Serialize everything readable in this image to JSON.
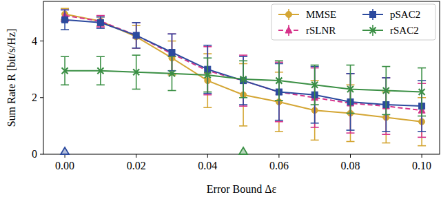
{
  "chart_data": {
    "type": "line",
    "x_label": "Error Bound Δε",
    "y_label": "Sum Rate R [bit/s/Hz]",
    "x": [
      0.0,
      0.01,
      0.02,
      0.03,
      0.04,
      0.05,
      0.06,
      0.07,
      0.08,
      0.09,
      0.1
    ],
    "xlim": [
      -0.006,
      0.105
    ],
    "ylim": [
      0,
      5.4
    ],
    "xticks": [
      {
        "value": 0.0,
        "label": "0.00"
      },
      {
        "value": 0.02,
        "label": "0.02"
      },
      {
        "value": 0.04,
        "label": "0.04"
      },
      {
        "value": 0.06,
        "label": "0.06"
      },
      {
        "value": 0.08,
        "label": "0.08"
      },
      {
        "value": 0.1,
        "label": "0.10"
      }
    ],
    "yticks": [
      0,
      2,
      4
    ],
    "grid": false,
    "legend": "upper right",
    "series": [
      {
        "name": "MMSE",
        "color": "#d4a634",
        "marker": "circle",
        "line_style": "solid",
        "values": [
          4.95,
          4.7,
          4.15,
          3.4,
          2.6,
          2.1,
          1.85,
          1.55,
          1.45,
          1.3,
          1.15
        ],
        "errors": [
          0.2,
          0.15,
          0.4,
          0.6,
          0.95,
          1.1,
          1.05,
          1.05,
          1.0,
          0.9,
          0.85
        ]
      },
      {
        "name": "rSLNR",
        "color": "#d6338a",
        "marker": "triangle",
        "line_style": "dashed",
        "values": [
          4.9,
          4.7,
          4.2,
          3.55,
          2.95,
          2.6,
          2.2,
          2.0,
          1.8,
          1.7,
          1.55
        ],
        "errors": [
          0.2,
          0.2,
          0.45,
          0.7,
          0.85,
          0.9,
          1.05,
          1.05,
          1.05,
          1.0,
          0.95
        ]
      },
      {
        "name": "pSAC2",
        "color": "#2c4a9e",
        "marker": "square",
        "line_style": "solid",
        "values": [
          4.75,
          4.65,
          4.2,
          3.6,
          3.0,
          2.6,
          2.2,
          2.1,
          1.85,
          1.75,
          1.7
        ],
        "errors": [
          0.35,
          0.2,
          0.45,
          0.65,
          0.85,
          0.85,
          1.0,
          1.0,
          1.0,
          0.95,
          0.9
        ]
      },
      {
        "name": "rSAC2",
        "color": "#3a8f44",
        "marker": "x",
        "line_style": "solid",
        "values": [
          2.95,
          2.95,
          2.9,
          2.85,
          2.8,
          2.65,
          2.6,
          2.45,
          2.3,
          2.25,
          2.2
        ],
        "errors": [
          0.5,
          0.5,
          0.6,
          0.6,
          0.6,
          0.65,
          0.7,
          0.7,
          0.85,
          0.85,
          0.85
        ]
      }
    ],
    "axis_markers": [
      {
        "x": 0.0,
        "color": "#2c4a9e"
      },
      {
        "x": 0.05,
        "color": "#3a8f44"
      }
    ]
  }
}
